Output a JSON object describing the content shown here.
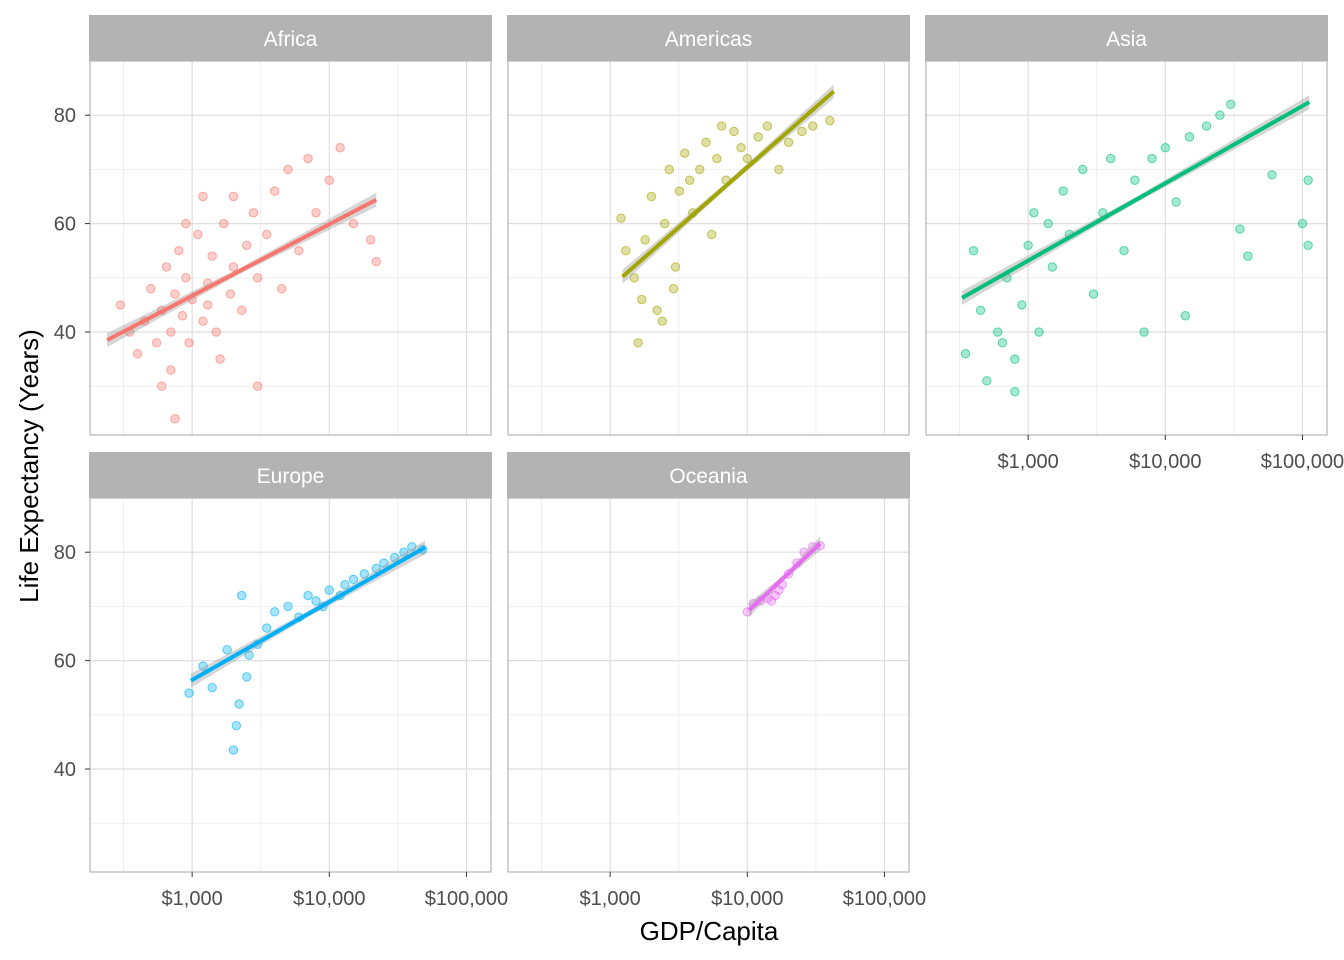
{
  "chart_data": {
    "type": "scatter",
    "facet_by": "continent",
    "xlabel": "GDP/Capita",
    "ylabel": "Life Expectancy (Years)",
    "x_scale": "log10",
    "xlim": [
      180,
      151000
    ],
    "ylim": [
      21,
      90
    ],
    "x_ticks": [
      1000,
      10000,
      100000
    ],
    "x_tick_labels": [
      "$1,000",
      "$10,000",
      "$100,000"
    ],
    "y_ticks": [
      40,
      60,
      80
    ],
    "y_tick_labels": [
      "40",
      "60",
      "80"
    ],
    "grid": true,
    "point_alpha": 0.35,
    "trend": "linear fit with confidence band",
    "panels": [
      {
        "name": "Africa",
        "color": "#F8766D",
        "fit": [
          [
            240,
            38.5
          ],
          [
            22000,
            64.4
          ]
        ],
        "points": [
          [
            300,
            45
          ],
          [
            350,
            40
          ],
          [
            400,
            36
          ],
          [
            450,
            42
          ],
          [
            500,
            48
          ],
          [
            550,
            38
          ],
          [
            600,
            44
          ],
          [
            650,
            52
          ],
          [
            700,
            40
          ],
          [
            750,
            47
          ],
          [
            800,
            55
          ],
          [
            850,
            43
          ],
          [
            900,
            50
          ],
          [
            950,
            38
          ],
          [
            1000,
            46
          ],
          [
            1100,
            58
          ],
          [
            1200,
            42
          ],
          [
            1300,
            49
          ],
          [
            1400,
            54
          ],
          [
            1500,
            40
          ],
          [
            1700,
            60
          ],
          [
            1900,
            47
          ],
          [
            2000,
            52
          ],
          [
            2300,
            44
          ],
          [
            2500,
            56
          ],
          [
            2800,
            62
          ],
          [
            3000,
            50
          ],
          [
            3500,
            58
          ],
          [
            4000,
            66
          ],
          [
            4500,
            48
          ],
          [
            5000,
            70
          ],
          [
            6000,
            55
          ],
          [
            7000,
            72
          ],
          [
            8000,
            62
          ],
          [
            10000,
            68
          ],
          [
            12000,
            74
          ],
          [
            15000,
            60
          ],
          [
            20000,
            57
          ],
          [
            22000,
            53
          ],
          [
            750,
            24
          ],
          [
            3000,
            30
          ],
          [
            700,
            33
          ],
          [
            1200,
            65
          ],
          [
            2000,
            65
          ],
          [
            600,
            30
          ],
          [
            1600,
            35
          ],
          [
            900,
            60
          ],
          [
            1300,
            45
          ]
        ]
      },
      {
        "name": "Americas",
        "color": "#A3A500",
        "fit": [
          [
            1230,
            50.2
          ],
          [
            42700,
            84.4
          ]
        ],
        "points": [
          [
            1200,
            61
          ],
          [
            1300,
            55
          ],
          [
            1500,
            50
          ],
          [
            1700,
            46
          ],
          [
            1800,
            57
          ],
          [
            2000,
            65
          ],
          [
            2200,
            44
          ],
          [
            2500,
            60
          ],
          [
            2700,
            70
          ],
          [
            3000,
            52
          ],
          [
            3200,
            66
          ],
          [
            3500,
            73
          ],
          [
            4000,
            62
          ],
          [
            4500,
            70
          ],
          [
            5000,
            75
          ],
          [
            5500,
            58
          ],
          [
            6000,
            72
          ],
          [
            7000,
            68
          ],
          [
            8000,
            77
          ],
          [
            9000,
            74
          ],
          [
            10000,
            72
          ],
          [
            12000,
            76
          ],
          [
            14000,
            78
          ],
          [
            17000,
            70
          ],
          [
            20000,
            75
          ],
          [
            25000,
            77
          ],
          [
            30000,
            78
          ],
          [
            40000,
            79
          ],
          [
            1600,
            38
          ],
          [
            2400,
            42
          ],
          [
            3800,
            68
          ],
          [
            6500,
            78
          ],
          [
            2900,
            48
          ]
        ]
      },
      {
        "name": "Asia",
        "color": "#00BF7D",
        "fit": [
          [
            330,
            46.3
          ],
          [
            112000,
            82.4
          ]
        ],
        "points": [
          [
            350,
            36
          ],
          [
            400,
            55
          ],
          [
            450,
            44
          ],
          [
            500,
            31
          ],
          [
            600,
            40
          ],
          [
            700,
            50
          ],
          [
            800,
            29
          ],
          [
            800,
            35
          ],
          [
            900,
            45
          ],
          [
            1000,
            56
          ],
          [
            1100,
            62
          ],
          [
            1200,
            40
          ],
          [
            1500,
            52
          ],
          [
            1800,
            66
          ],
          [
            2000,
            58
          ],
          [
            2500,
            70
          ],
          [
            3000,
            47
          ],
          [
            3500,
            62
          ],
          [
            4000,
            72
          ],
          [
            5000,
            55
          ],
          [
            6000,
            68
          ],
          [
            8000,
            72
          ],
          [
            10000,
            74
          ],
          [
            12000,
            64
          ],
          [
            15000,
            76
          ],
          [
            20000,
            78
          ],
          [
            25000,
            80
          ],
          [
            30000,
            82
          ],
          [
            35000,
            59
          ],
          [
            40000,
            54
          ],
          [
            60000,
            69
          ],
          [
            100000,
            60
          ],
          [
            110000,
            68
          ],
          [
            110000,
            56
          ],
          [
            7000,
            40
          ],
          [
            14000,
            43
          ],
          [
            650,
            38
          ],
          [
            1400,
            60
          ]
        ]
      },
      {
        "name": "Europe",
        "color": "#00B0F6",
        "fit": [
          [
            980,
            56.3
          ],
          [
            50000,
            80.9
          ]
        ],
        "points": [
          [
            950,
            54
          ],
          [
            1200,
            59
          ],
          [
            1400,
            55
          ],
          [
            1800,
            62
          ],
          [
            2000,
            43.5
          ],
          [
            2100,
            48
          ],
          [
            2300,
            72
          ],
          [
            2500,
            57
          ],
          [
            3000,
            63
          ],
          [
            3500,
            66
          ],
          [
            4000,
            69
          ],
          [
            5000,
            70
          ],
          [
            6000,
            68
          ],
          [
            7000,
            72
          ],
          [
            8000,
            71
          ],
          [
            10000,
            73
          ],
          [
            12000,
            72
          ],
          [
            15000,
            75
          ],
          [
            18000,
            76
          ],
          [
            22000,
            77
          ],
          [
            25000,
            78
          ],
          [
            30000,
            79
          ],
          [
            35000,
            80
          ],
          [
            40000,
            81
          ],
          [
            48000,
            80.5
          ],
          [
            2600,
            61
          ],
          [
            2200,
            52
          ],
          [
            9000,
            70
          ],
          [
            13000,
            74
          ]
        ]
      },
      {
        "name": "Oceania",
        "color": "#E76BF3",
        "fit": [
          [
            10300,
            69.3
          ],
          [
            34000,
            81.6
          ]
        ],
        "points": [
          [
            10000,
            69
          ],
          [
            11000,
            70.5
          ],
          [
            12500,
            71
          ],
          [
            14000,
            71.5
          ],
          [
            16000,
            72
          ],
          [
            18000,
            74
          ],
          [
            20000,
            76
          ],
          [
            23000,
            78
          ],
          [
            26000,
            80
          ],
          [
            30000,
            81
          ],
          [
            34000,
            81.2
          ],
          [
            15000,
            71
          ],
          [
            17000,
            73
          ]
        ]
      }
    ]
  }
}
